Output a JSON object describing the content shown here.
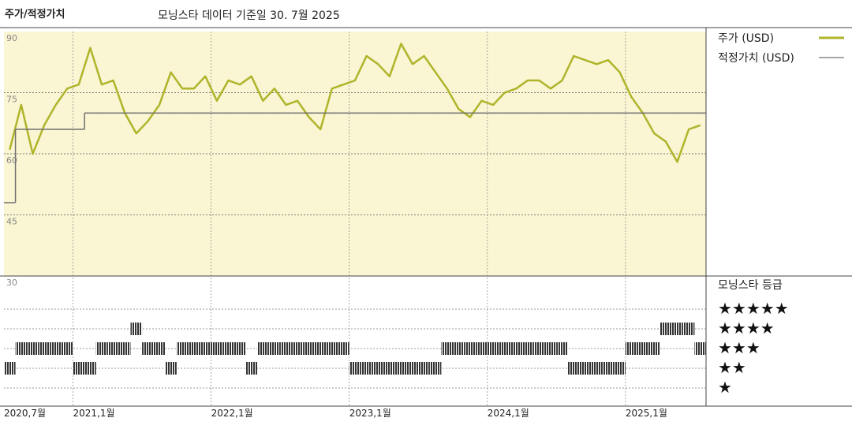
{
  "chart_data": {
    "type": "line",
    "title": "주가/적정가치",
    "subtitle": "모닝스타 데이터 기준일 30. 7월 2025",
    "x": [
      "2020-07",
      "2020-08",
      "2020-09",
      "2020-10",
      "2020-11",
      "2020-12",
      "2021-01",
      "2021-02",
      "2021-03",
      "2021-04",
      "2021-05",
      "2021-06",
      "2021-07",
      "2021-08",
      "2021-09",
      "2021-10",
      "2021-11",
      "2021-12",
      "2022-01",
      "2022-02",
      "2022-03",
      "2022-04",
      "2022-05",
      "2022-06",
      "2022-07",
      "2022-08",
      "2022-09",
      "2022-10",
      "2022-11",
      "2022-12",
      "2023-01",
      "2023-02",
      "2023-03",
      "2023-04",
      "2023-05",
      "2023-06",
      "2023-07",
      "2023-08",
      "2023-09",
      "2023-10",
      "2023-11",
      "2023-12",
      "2024-01",
      "2024-02",
      "2024-03",
      "2024-04",
      "2024-05",
      "2024-06",
      "2024-07",
      "2024-08",
      "2024-09",
      "2024-10",
      "2024-11",
      "2024-12",
      "2025-01",
      "2025-02",
      "2025-03",
      "2025-04",
      "2025-05",
      "2025-06",
      "2025-07"
    ],
    "xlim": [
      "2020-07",
      "2025-08"
    ],
    "xticks": [
      {
        "value": "2020-07",
        "label": "2020,7월"
      },
      {
        "value": "2021-01",
        "label": "2021,1월"
      },
      {
        "value": "2022-01",
        "label": "2022,1월"
      },
      {
        "value": "2023-01",
        "label": "2023,1월"
      },
      {
        "value": "2024-01",
        "label": "2024,1월"
      },
      {
        "value": "2025-01",
        "label": "2025,1월"
      }
    ],
    "ylim": [
      30,
      90
    ],
    "yticks": [
      30,
      45,
      60,
      75,
      90
    ],
    "grid": true,
    "background": "#faf5d2",
    "series": [
      {
        "name": "주가 (USD)",
        "color": "#afb42b",
        "values": [
          61,
          72,
          60,
          67,
          72,
          76,
          77,
          86,
          77,
          78,
          70,
          65,
          68,
          72,
          80,
          76,
          76,
          79,
          73,
          78,
          77,
          79,
          73,
          76,
          72,
          73,
          69,
          66,
          76,
          77,
          78,
          84,
          82,
          79,
          87,
          82,
          84,
          80,
          76,
          71,
          69,
          73,
          72,
          75,
          76,
          78,
          78,
          76,
          78,
          84,
          83,
          82,
          83,
          80,
          74,
          70,
          65,
          63,
          58,
          66,
          67
        ]
      },
      {
        "name": "적정가치 (USD)",
        "color": "#707070",
        "step": true,
        "values": [
          48,
          66,
          66,
          66,
          66,
          66,
          66,
          70,
          70,
          70,
          70,
          70,
          70,
          70,
          70,
          70,
          70,
          70,
          70,
          70,
          70,
          70,
          70,
          70,
          70,
          70,
          70,
          70,
          70,
          70,
          70,
          70,
          70,
          70,
          70,
          70,
          70,
          70,
          70,
          70,
          70,
          70,
          70,
          70,
          70,
          70,
          70,
          70,
          70,
          70,
          70,
          70,
          70,
          70,
          70,
          70,
          70,
          70,
          70,
          70,
          70
        ]
      }
    ],
    "ratings": {
      "title": "모닝스타 등급",
      "levels": [
        {
          "value": 5,
          "label": "★★★★★"
        },
        {
          "value": 4,
          "label": "★★★★"
        },
        {
          "value": 3,
          "label": "★★★"
        },
        {
          "value": 2,
          "label": "★★"
        },
        {
          "value": 1,
          "label": "★"
        }
      ],
      "values": [
        2,
        3,
        3,
        3,
        3,
        3,
        2,
        2,
        3,
        3,
        3,
        4,
        3,
        3,
        2,
        3,
        3,
        3,
        3,
        3,
        3,
        2,
        3,
        3,
        3,
        3,
        3,
        3,
        3,
        3,
        2,
        2,
        2,
        2,
        2,
        2,
        2,
        2,
        3,
        3,
        3,
        3,
        3,
        3,
        3,
        3,
        3,
        3,
        3,
        2,
        2,
        2,
        2,
        2,
        3,
        3,
        3,
        4,
        4,
        4,
        3
      ]
    }
  }
}
